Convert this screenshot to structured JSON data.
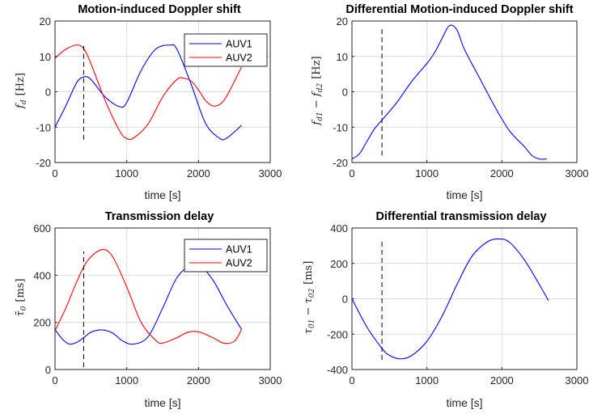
{
  "colors": {
    "auv1": "#0000ff",
    "auv2": "#ff0000",
    "marker": "#000000",
    "grid": "#dcdcdc"
  },
  "chart_data": [
    {
      "type": "line",
      "title": "Motion-induced Doppler shift",
      "xlabel": "time [s]",
      "ylabel": "f_d [Hz]",
      "ylabel_parts": {
        "main": "f",
        "sub": "d",
        "unit": "[Hz]"
      },
      "xlim": [
        0,
        3000
      ],
      "ylim": [
        -20,
        20
      ],
      "xticks": [
        0,
        1000,
        2000,
        3000
      ],
      "xtick_labels": [
        "0",
        "1000",
        "2000",
        "3000"
      ],
      "yticks": [
        -20,
        -10,
        0,
        10,
        20
      ],
      "ytick_labels": [
        "-20",
        "-10",
        "0",
        "10",
        "20"
      ],
      "grid": true,
      "legend": "top-right",
      "marker_x": 400,
      "marker_yrange": [
        -13.5,
        13.5
      ],
      "series": [
        {
          "name": "AUV1",
          "color_key": "auv1",
          "x": [
            0,
            150,
            300,
            400,
            500,
            700,
            900,
            1000,
            1200,
            1400,
            1600,
            1700,
            1900,
            2100,
            2300,
            2400,
            2600
          ],
          "y": [
            -10,
            -4,
            2.5,
            4.2,
            3.5,
            -1.5,
            -4.2,
            -3,
            6,
            12,
            13.2,
            12,
            2,
            -9,
            -13.2,
            -13,
            -9.5
          ]
        },
        {
          "name": "AUV2",
          "color_key": "auv2",
          "x": [
            0,
            150,
            300,
            400,
            500,
            700,
            900,
            1000,
            1100,
            1300,
            1500,
            1700,
            1800,
            1900,
            2000,
            2100,
            2200,
            2300,
            2400,
            2600
          ],
          "y": [
            9.5,
            12,
            13.2,
            12.2,
            8,
            -2.5,
            -11,
            -13.2,
            -13,
            -9,
            -1.5,
            3.5,
            3.8,
            3,
            0.5,
            -2.5,
            -4,
            -3.5,
            -1,
            7
          ]
        }
      ]
    },
    {
      "type": "line",
      "title": "Differential Motion-induced Doppler shift",
      "xlabel": "time [s]",
      "ylabel": "f_d1 - f_d2 [Hz]",
      "ylabel_parts": {
        "main1": "f",
        "sub1": "d1",
        "op": " − ",
        "main2": "f",
        "sub2": "d2",
        "unit": "[Hz]"
      },
      "xlim": [
        0,
        3000
      ],
      "ylim": [
        -20,
        20
      ],
      "xticks": [
        0,
        1000,
        2000,
        3000
      ],
      "xtick_labels": [
        "0",
        "1000",
        "2000",
        "3000"
      ],
      "yticks": [
        -20,
        -10,
        0,
        10,
        20
      ],
      "ytick_labels": [
        "-20",
        "-10",
        "0",
        "10",
        "20"
      ],
      "grid": true,
      "marker_x": 400,
      "marker_yrange": [
        -18,
        18
      ],
      "series": [
        {
          "color_key": "auv1",
          "x": [
            0,
            100,
            200,
            300,
            400,
            600,
            800,
            1000,
            1100,
            1200,
            1300,
            1400,
            1500,
            1700,
            1900,
            2100,
            2300,
            2400,
            2500,
            2600
          ],
          "y": [
            -19,
            -17.5,
            -14,
            -10.5,
            -8,
            -3,
            3,
            8,
            11,
            15,
            18.7,
            17.5,
            12,
            4,
            -4,
            -11,
            -15.5,
            -18,
            -19,
            -19
          ]
        }
      ]
    },
    {
      "type": "line",
      "title": "Transmission delay",
      "xlabel": "time [s]",
      "ylabel": "τ̄_0 [ms]",
      "ylabel_parts": {
        "main": "τ̄",
        "sub": "0",
        "unit": "[ms]"
      },
      "xlim": [
        0,
        3000
      ],
      "ylim": [
        0,
        600
      ],
      "xticks": [
        0,
        1000,
        2000,
        3000
      ],
      "xtick_labels": [
        "0",
        "1000",
        "2000",
        "3000"
      ],
      "yticks": [
        0,
        200,
        400,
        600
      ],
      "ytick_labels": [
        "0",
        "200",
        "400",
        "600"
      ],
      "grid": true,
      "legend": "top-right",
      "marker_x": 400,
      "marker_yrange": [
        10,
        500
      ],
      "series": [
        {
          "name": "AUV1",
          "color_key": "auv1",
          "x": [
            0,
            100,
            200,
            300,
            400,
            500,
            650,
            800,
            950,
            1100,
            1300,
            1500,
            1700,
            1900,
            2000,
            2200,
            2400,
            2600
          ],
          "y": [
            170,
            130,
            108,
            115,
            135,
            158,
            168,
            155,
            120,
            108,
            140,
            260,
            390,
            445,
            450,
            380,
            270,
            170
          ]
        },
        {
          "name": "AUV2",
          "color_key": "auv2",
          "x": [
            0,
            150,
            300,
            450,
            650,
            800,
            1000,
            1200,
            1400,
            1500,
            1700,
            1850,
            2000,
            2200,
            2350,
            2500,
            2600
          ],
          "y": [
            165,
            260,
            370,
            460,
            508,
            480,
            350,
            200,
            125,
            112,
            135,
            158,
            160,
            135,
            112,
            120,
            170
          ]
        }
      ]
    },
    {
      "type": "line",
      "title": "Differential transmission delay",
      "xlabel": "time [s]",
      "ylabel": "τ_01 - τ_02 [ms]",
      "ylabel_parts": {
        "main1": "τ",
        "sub1": "01",
        "op": " − ",
        "main2": "τ",
        "sub2": "02",
        "unit": "[ms]"
      },
      "xlim": [
        0,
        3000
      ],
      "ylim": [
        -400,
        400
      ],
      "xticks": [
        0,
        1000,
        2000,
        3000
      ],
      "xtick_labels": [
        "0",
        "1000",
        "2000",
        "3000"
      ],
      "yticks": [
        -400,
        -200,
        0,
        200,
        400
      ],
      "ytick_labels": [
        "-400",
        "-200",
        "0",
        "200",
        "400"
      ],
      "grid": true,
      "marker_x": 400,
      "marker_yrange": [
        -345,
        340
      ],
      "series": [
        {
          "color_key": "auv1",
          "x": [
            0,
            200,
            400,
            500,
            650,
            800,
            1000,
            1200,
            1400,
            1600,
            1800,
            1950,
            2100,
            2300,
            2500,
            2620
          ],
          "y": [
            0,
            -160,
            -280,
            -320,
            -340,
            -320,
            -240,
            -100,
            80,
            240,
            320,
            338,
            320,
            220,
            80,
            -10
          ]
        }
      ]
    }
  ]
}
